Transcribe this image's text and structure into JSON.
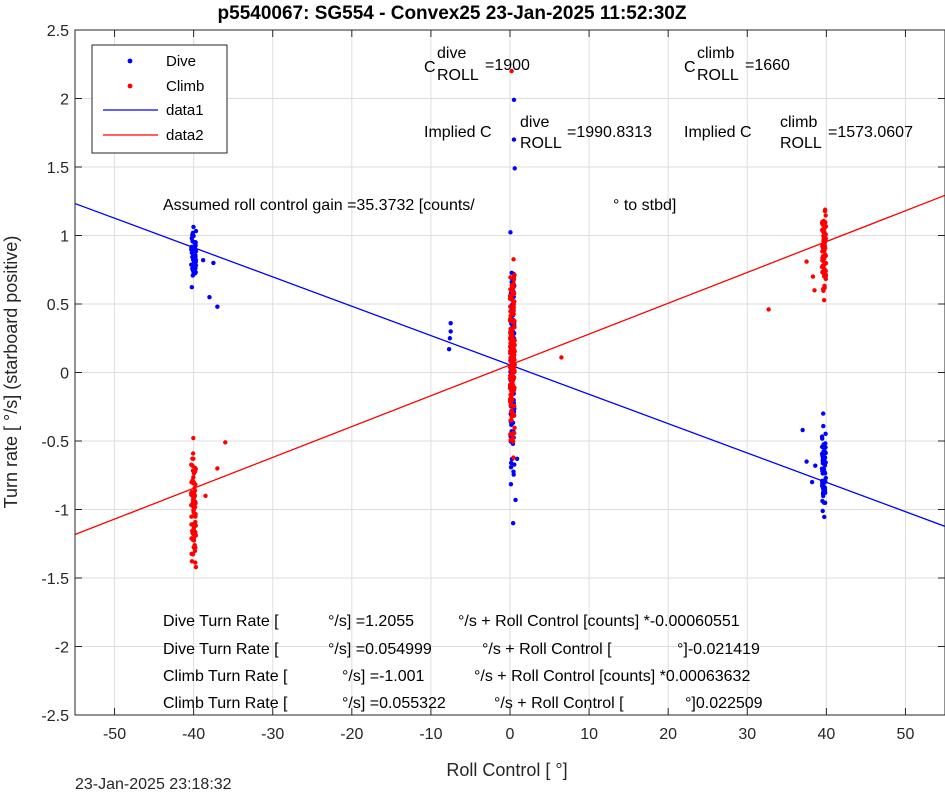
{
  "chart_data": {
    "type": "scatter",
    "title": "p5540067: SG554 - Convex25 23-Jan-2025 11:52:30Z",
    "xlabel": "Roll Control [   °]",
    "ylabel": "Turn rate [   °/s] (starboard positive)",
    "xlim": [
      -55,
      55
    ],
    "ylim": [
      -2.5,
      2.5
    ],
    "xticks": [
      -50,
      -40,
      -30,
      -20,
      -10,
      0,
      10,
      20,
      30,
      40,
      50
    ],
    "yticks": [
      -2.5,
      -2,
      -1.5,
      -1,
      -0.5,
      0,
      0.5,
      1,
      1.5,
      2,
      2.5
    ],
    "xtick_labels": [
      "-50",
      "-40",
      "-30",
      "-20",
      "-10",
      "0",
      "10",
      "20",
      "30",
      "40",
      "50"
    ],
    "ytick_labels": [
      "-2.5",
      "-2",
      "-1.5",
      "-1",
      "-0.5",
      "0",
      "0.5",
      "1",
      "1.5",
      "2",
      "2.5"
    ],
    "grid": true,
    "legend_position": "top-left",
    "legend": [
      "Dive",
      "Climb",
      "data1",
      "data2"
    ],
    "series": [
      {
        "name": "Dive",
        "kind": "points",
        "color": "#0000ff",
        "clusters": [
          {
            "x": -40,
            "x_spread": 0.6,
            "y_min": 0.55,
            "y_max": 1.17,
            "count": 60
          },
          {
            "x": 0.3,
            "x_spread": 0.5,
            "y_min": -1.1,
            "y_max": 1.12,
            "count": 110
          },
          {
            "x": 39.7,
            "x_spread": 0.5,
            "y_min": -1.1,
            "y_max": -0.3,
            "count": 60
          }
        ],
        "points": [
          [
            -38.0,
            0.55
          ],
          [
            -37.0,
            0.48
          ],
          [
            -37.5,
            0.8
          ],
          [
            -38.8,
            0.82
          ],
          [
            -7.5,
            0.36
          ],
          [
            -7.5,
            0.3
          ],
          [
            -7.7,
            0.17
          ],
          [
            -7.6,
            0.25
          ],
          [
            0.5,
            1.99
          ],
          [
            0.5,
            1.7
          ],
          [
            0.6,
            1.49
          ],
          [
            0.7,
            -0.93
          ],
          [
            0.4,
            -1.1
          ],
          [
            0.9,
            -0.63
          ],
          [
            37.0,
            -0.42
          ],
          [
            37.5,
            -0.65
          ],
          [
            38.6,
            -0.68
          ],
          [
            38.2,
            -0.8
          ],
          [
            39.6,
            -0.3
          ]
        ]
      },
      {
        "name": "Climb",
        "kind": "points",
        "color": "#ff0000",
        "clusters": [
          {
            "x": -40,
            "x_spread": 0.6,
            "y_min": -1.57,
            "y_max": -0.4,
            "count": 80
          },
          {
            "x": 0.3,
            "x_spread": 0.6,
            "y_min": -0.75,
            "y_max": 1.0,
            "count": 180
          },
          {
            "x": 39.7,
            "x_spread": 0.5,
            "y_min": 0.43,
            "y_max": 1.34,
            "count": 70
          }
        ],
        "points": [
          [
            -36.0,
            -0.51
          ],
          [
            -37.0,
            -0.7
          ],
          [
            -38.5,
            -0.9
          ],
          [
            0.2,
            2.2
          ],
          [
            6.5,
            0.11
          ],
          [
            32.7,
            0.46
          ],
          [
            37.5,
            0.81
          ],
          [
            38.5,
            0.6
          ],
          [
            38.3,
            0.7
          ],
          [
            39.5,
            1.1
          ]
        ]
      },
      {
        "name": "data1",
        "kind": "line",
        "color": "#0000ff",
        "intercept": 0.054999,
        "slope": -0.021419
      },
      {
        "name": "data2",
        "kind": "line",
        "color": "#ff0000",
        "intercept": 0.055322,
        "slope": 0.022509
      }
    ]
  },
  "annotations": {
    "c_dive_symbol": "C",
    "c_dive_sup": "dive",
    "c_dive_sub": "ROLL",
    "c_dive_value": "=1900",
    "c_climb_symbol": "C",
    "c_climb_sup": "climb",
    "c_climb_sub": "ROLL",
    "c_climb_value": "=1660",
    "implied_dive_prefix": "Implied C",
    "implied_dive_sup": "dive",
    "implied_dive_sub": "ROLL",
    "implied_dive_value": "=1990.8313",
    "implied_climb_prefix": "Implied C",
    "implied_climb_sup": "climb",
    "implied_climb_sub": "ROLL",
    "implied_climb_value": "=1573.0607",
    "gain_text": "Assumed roll control gain =35.3732 [counts/",
    "gain_deg": "° to stbd]",
    "eq1_a": "Dive Turn Rate [",
    "eq1_b": "°/s] =1.2055",
    "eq1_c": "°/s + Roll Control [counts] *-0.00060551",
    "eq2_a": "Dive Turn Rate [",
    "eq2_b": "°/s] =0.054999",
    "eq2_c": "°/s + Roll Control [",
    "eq2_d": "°]-0.021419",
    "eq3_a": "Climb Turn Rate [",
    "eq3_b": "°/s] =-1.001",
    "eq3_c": "°/s + Roll Control [counts] *0.00063632",
    "eq4_a": "Climb Turn Rate [",
    "eq4_b": "°/s] =0.055322",
    "eq4_c": "°/s + Roll Control [",
    "eq4_d": "°]0.022509",
    "timestamp": "23-Jan-2025 23:18:32"
  }
}
